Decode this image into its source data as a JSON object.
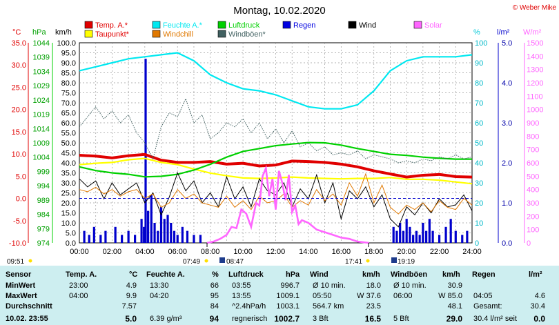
{
  "chart_data": {
    "type": "line",
    "title": "Montag, 10.02.2020",
    "credit": "© Weber Mike",
    "axes": {
      "temp_c": {
        "unit": "°C",
        "color": "#e00000",
        "ticks": [
          "35.0",
          "30.0",
          "25.0",
          "20.0",
          "15.0",
          "10.0",
          "5.0",
          "0.0",
          "-5.0",
          "-10.0"
        ],
        "range": [
          -10,
          35
        ]
      },
      "pressure_hpa": {
        "unit": "hPa",
        "color": "#00a000",
        "ticks": [
          "1044",
          "1039",
          "1034",
          "1029",
          "1024",
          "1019",
          "1014",
          "1009",
          "1004",
          "999",
          "994",
          "989",
          "984",
          "979",
          "974"
        ],
        "range": [
          974,
          1044
        ]
      },
      "wind_kmh": {
        "unit": "km/h",
        "color": "#000000",
        "ticks": [
          "100.0",
          "95.0",
          "90.0",
          "85.0",
          "80.0",
          "75.0",
          "70.0",
          "65.0",
          "60.0",
          "55.0",
          "50.0",
          "45.0",
          "40.0",
          "35.0",
          "30.0",
          "25.0",
          "20.0",
          "15.0",
          "10.0",
          "5.0",
          "0.0"
        ],
        "range": [
          0,
          100
        ]
      },
      "humidity_pct": {
        "unit": "%",
        "color": "#00c8d8",
        "ticks": [
          "100",
          "90",
          "80",
          "70",
          "60",
          "50",
          "40",
          "30",
          "20",
          "10",
          "0"
        ],
        "range": [
          0,
          100
        ]
      },
      "rain_lm2": {
        "unit": "l/m²",
        "color": "#0000cc",
        "ticks": [
          "5.0",
          "4.0",
          "3.0",
          "2.0",
          "1.0",
          "0.0"
        ],
        "range": [
          0,
          5
        ]
      },
      "solar_wm2": {
        "unit": "W/m²",
        "color": "#ff55ff",
        "ticks": [
          "1500",
          "1400",
          "1300",
          "1200",
          "1100",
          "1000",
          "900",
          "800",
          "700",
          "600",
          "500",
          "400",
          "300",
          "200",
          "100",
          "0"
        ],
        "range": [
          0,
          1500
        ]
      }
    },
    "x_ticks": [
      "00:00",
      "02:00",
      "04:00",
      "06:00",
      "08:00",
      "10:00",
      "12:00",
      "14:00",
      "16:00",
      "18:00",
      "20:00",
      "22:00",
      "24:00"
    ],
    "legend": [
      {
        "name": "Temp. A.*",
        "color": "#e00000"
      },
      {
        "name": "Feuchte A.*",
        "color": "#00e8f0"
      },
      {
        "name": "Luftdruck",
        "color": "#00d000"
      },
      {
        "name": "Regen",
        "color": "#0000e0"
      },
      {
        "name": "Wind",
        "color": "#000000"
      },
      {
        "name": "Solar",
        "color": "#ff66ff"
      },
      {
        "name": "Taupunkt*",
        "color": "#ffff00"
      },
      {
        "name": "Windchill",
        "color": "#e07800"
      },
      {
        "name": "Windböen*",
        "color": "#406060"
      }
    ],
    "sun_markers": {
      "left": "09:51",
      "sunrise": "07:49",
      "sunrise2": "08:47",
      "sunset": "17:41",
      "sunset2": "19:19"
    },
    "series": [
      {
        "name": "Temp. A.*",
        "axis": "temp_c",
        "x": [
          0,
          1,
          2,
          3,
          4,
          5,
          6,
          7,
          8,
          9,
          10,
          11,
          12,
          13,
          14,
          15,
          16,
          17,
          18,
          19,
          20,
          21,
          22,
          23,
          24
        ],
        "y": [
          9.7,
          9.5,
          9.1,
          9.6,
          9.9,
          8.6,
          8.1,
          8.1,
          8.3,
          7.7,
          7.9,
          7.3,
          7.5,
          8.4,
          8.3,
          8.1,
          7.7,
          7.1,
          6.2,
          5.5,
          4.8,
          5.2,
          5.4,
          4.9,
          4.8
        ]
      },
      {
        "name": "Taupunkt*",
        "axis": "temp_c",
        "x": [
          0,
          1,
          2,
          3,
          4,
          5,
          6,
          7,
          8,
          9,
          10,
          11,
          12,
          13,
          14,
          15,
          16,
          17,
          18,
          19,
          20,
          21,
          22,
          23,
          24
        ],
        "y": [
          7.6,
          7.9,
          8.1,
          8.7,
          9.0,
          8.1,
          7.6,
          6.6,
          5.7,
          5.1,
          4.6,
          4.5,
          4.6,
          4.8,
          4.6,
          4.5,
          4.4,
          4.5,
          4.5,
          4.7,
          4.3,
          4.3,
          4.1,
          3.7,
          3.3
        ]
      },
      {
        "name": "Feuchte A.*",
        "axis": "humidity_pct",
        "x": [
          0,
          1,
          2,
          3,
          4,
          5,
          6,
          7,
          8,
          9,
          10,
          11,
          12,
          13,
          14,
          15,
          16,
          17,
          18,
          19,
          20,
          21,
          22,
          23,
          24
        ],
        "y": [
          86,
          88,
          90,
          92,
          93,
          94,
          95,
          91,
          84,
          80,
          77,
          76,
          74,
          71,
          68,
          67,
          67,
          69,
          76,
          86,
          91,
          93,
          93,
          93,
          94
        ]
      },
      {
        "name": "Luftdruck",
        "axis": "pressure_hpa",
        "x": [
          0,
          1,
          2,
          3,
          4,
          5,
          6,
          7,
          8,
          9,
          10,
          11,
          12,
          13,
          14,
          15,
          16,
          17,
          18,
          19,
          20,
          21,
          22,
          23,
          24
        ],
        "y": [
          1000.6,
          999.3,
          998.5,
          998.0,
          997.1,
          997.3,
          998.0,
          999.5,
          1001.5,
          1004.0,
          1006.0,
          1007.0,
          1008.0,
          1008.6,
          1009.1,
          1009.0,
          1008.2,
          1007.0,
          1006.0,
          1005.0,
          1004.6,
          1004.0,
          1003.6,
          1003.3,
          1003.3
        ]
      },
      {
        "name": "Wind",
        "axis": "wind_kmh",
        "x": [
          0,
          0.5,
          1,
          1.5,
          2,
          2.5,
          3,
          3.5,
          4,
          4.5,
          5,
          5.5,
          6,
          6.5,
          7,
          7.5,
          8,
          8.5,
          9,
          9.5,
          10,
          10.5,
          11,
          11.5,
          12,
          12.5,
          13,
          13.5,
          14,
          14.5,
          15,
          15.5,
          16,
          16.5,
          17,
          17.5,
          18,
          18.5,
          19,
          19.5,
          20,
          20.5,
          21,
          21.5,
          22,
          22.5,
          23,
          23.5,
          24
        ],
        "y": [
          32,
          28,
          31,
          22,
          30,
          24,
          27,
          30,
          20,
          25,
          14,
          23,
          35,
          26,
          31,
          20,
          25,
          18,
          33,
          22,
          28,
          18,
          32,
          26,
          24,
          30,
          18,
          27,
          22,
          34,
          20,
          30,
          12,
          26,
          22,
          28,
          18,
          24,
          12,
          8,
          18,
          14,
          20,
          15,
          22,
          18,
          19,
          24,
          16
        ]
      },
      {
        "name": "Windchill",
        "axis": "temp_c",
        "x": [
          0,
          0.5,
          1,
          1.5,
          2,
          2.5,
          3,
          3.5,
          4,
          4.5,
          5,
          5.5,
          6,
          6.5,
          7,
          7.5,
          8,
          8.5,
          9,
          9.5,
          10,
          10.5,
          11,
          11.5,
          12,
          12.5,
          13,
          13.5,
          14,
          14.5,
          15,
          15.5,
          16,
          16.5,
          17,
          17.5,
          18,
          18.5,
          19,
          19.5,
          20,
          20.5,
          21,
          21.5,
          22,
          22.5,
          23,
          23.5,
          24
        ],
        "y": [
          2.0,
          1.5,
          2.5,
          1.0,
          2.0,
          0.5,
          1.5,
          2.0,
          0.0,
          1.0,
          -2.0,
          -1.0,
          2.0,
          0.0,
          1.0,
          -1.0,
          -1.5,
          -2.0,
          0.5,
          -2.0,
          -0.5,
          -2.5,
          0.5,
          -1.0,
          -0.5,
          1.0,
          -2.0,
          -0.5,
          -1.5,
          2.0,
          -0.5,
          1.0,
          -1.5,
          3.5,
          0.5,
          5.5,
          -1.0,
          3.0,
          -2.0,
          -3.5,
          -1.5,
          -2.5,
          -1.0,
          -3.0,
          -0.5,
          -2.0,
          -2.5,
          0.0,
          -1.5
        ]
      },
      {
        "name": "Windböen*",
        "axis": "wind_kmh",
        "x": [
          0,
          0.5,
          1,
          1.5,
          2,
          2.5,
          3,
          3.5,
          4,
          4.5,
          5,
          5.5,
          6,
          6.5,
          7,
          7.5,
          8,
          8.5,
          9,
          9.5,
          10,
          10.5,
          11,
          11.5,
          12,
          12.5,
          13,
          13.5,
          14,
          14.5,
          15,
          15.5,
          16,
          16.5,
          17,
          17.5,
          18,
          18.5,
          19,
          19.5,
          20,
          20.5,
          21,
          21.5,
          22,
          22.5,
          23,
          23.5,
          24
        ],
        "y": [
          58,
          63,
          68,
          62,
          66,
          60,
          64,
          55,
          50,
          42,
          58,
          65,
          63,
          72,
          60,
          64,
          52,
          55,
          60,
          58,
          62,
          55,
          60,
          52,
          57,
          50,
          56,
          48,
          50,
          46,
          48,
          44,
          45,
          44,
          46,
          42,
          44,
          43,
          42,
          40,
          41,
          40,
          42,
          41,
          43,
          42,
          44,
          42,
          43
        ]
      },
      {
        "name": "Solar",
        "axis": "solar_wm2",
        "x": [
          7.8,
          8.2,
          8.6,
          9.0,
          9.3,
          9.6,
          9.9,
          10.2,
          10.5,
          10.8,
          11.0,
          11.2,
          11.4,
          11.6,
          11.8,
          12.0,
          12.2,
          12.4,
          12.6,
          12.8,
          13.0,
          13.2,
          13.4,
          13.6,
          14.0,
          14.5,
          15.0,
          15.5,
          16.0,
          16.5,
          17.0,
          17.7
        ],
        "y": [
          0,
          10,
          30,
          60,
          120,
          110,
          250,
          220,
          120,
          300,
          280,
          500,
          560,
          350,
          480,
          250,
          540,
          450,
          320,
          510,
          230,
          280,
          140,
          170,
          150,
          100,
          80,
          60,
          40,
          30,
          10,
          0
        ]
      }
    ],
    "rain_bars": {
      "x": [
        0.3,
        0.6,
        0.9,
        1.3,
        1.6,
        2.2,
        2.6,
        3.0,
        3.4,
        3.8,
        3.95,
        4.05,
        4.2,
        4.4,
        4.6,
        4.8,
        5.0,
        5.2,
        5.4,
        5.6,
        5.8,
        6.0,
        6.3,
        6.6,
        7.0,
        7.4,
        19.2,
        19.4,
        19.6,
        19.8,
        20.0,
        20.2,
        20.4,
        20.6,
        20.8,
        21.0,
        21.2,
        21.4,
        21.6,
        22.0,
        22.4,
        22.7,
        23.0,
        23.4,
        23.7
      ],
      "y": [
        0.3,
        0.2,
        0.4,
        0.2,
        0.3,
        0.4,
        0.2,
        0.3,
        0.2,
        0.6,
        0.4,
        4.6,
        0.8,
        1.2,
        0.5,
        0.3,
        0.9,
        0.6,
        0.7,
        0.5,
        0.3,
        0.2,
        0.4,
        0.3,
        0.2,
        0.2,
        0.4,
        0.3,
        0.5,
        0.3,
        0.6,
        0.4,
        0.2,
        0.3,
        0.2,
        0.5,
        0.3,
        0.6,
        0.3,
        0.2,
        0.4,
        0.6,
        0.3,
        0.2,
        0.3
      ]
    },
    "hlines": [
      {
        "axis": "temp_c",
        "value": 0,
        "color": "#0000cc"
      }
    ]
  },
  "table": {
    "headers": {
      "sensor": "Sensor",
      "temp": "Temp. A.",
      "temp_unit": "°C",
      "hum": "Feuchte A.",
      "hum_unit": "%",
      "press": "Luftdruck",
      "press_unit": "hPa",
      "wind": "Wind",
      "wind_unit": "km/h",
      "gust": "Windböen",
      "gust_unit": "km/h",
      "rain": "Regen",
      "rain_unit": "l/m²"
    },
    "rows": [
      {
        "label": "MinWert",
        "temp_t": "23:00",
        "temp_v": "4.9",
        "hum_t": "13:30",
        "hum_v": "66",
        "press_t": "03:55",
        "press_v": "996.7",
        "wind_l": "Ø 10 min.",
        "wind_v": "18.0",
        "gust_l": "Ø 10 min.",
        "gust_v": "30.9",
        "rain_l": "",
        "rain_v": ""
      },
      {
        "label": "MaxWert",
        "temp_t": "04:00",
        "temp_v": "9.9",
        "hum_t": "04:20",
        "hum_v": "95",
        "press_t": "13:55",
        "press_v": "1009.1",
        "wind_l": "05:50",
        "wind_v": "W 37.6",
        "gust_l": "06:00",
        "gust_v": "W 85.0",
        "rain_l": "04:05",
        "rain_v": "4.6"
      },
      {
        "label": "Durchschnitt",
        "temp_t": "",
        "temp_v": "7.57",
        "hum_t": "",
        "hum_v": "84",
        "press_t": "^2.4hPa/h",
        "press_v": "1003.1",
        "wind_l": "564.7 km",
        "wind_v": "23.5",
        "gust_l": "",
        "gust_v": "48.1",
        "rain_l": "Gesamt:",
        "rain_v": "30.4"
      },
      {
        "label": "10.02. 23:55",
        "temp_t": "",
        "temp_v": "5.0",
        "hum_t": "6.39 g/m³",
        "hum_v": "94",
        "press_t": "regnerisch",
        "press_v": "1002.7",
        "wind_l": "3 Bft",
        "wind_v": "16.5",
        "gust_l": "5 Bft",
        "gust_v": "29.0",
        "rain_l": "30.4 l/m² seit",
        "rain_v": "0.0"
      }
    ]
  }
}
